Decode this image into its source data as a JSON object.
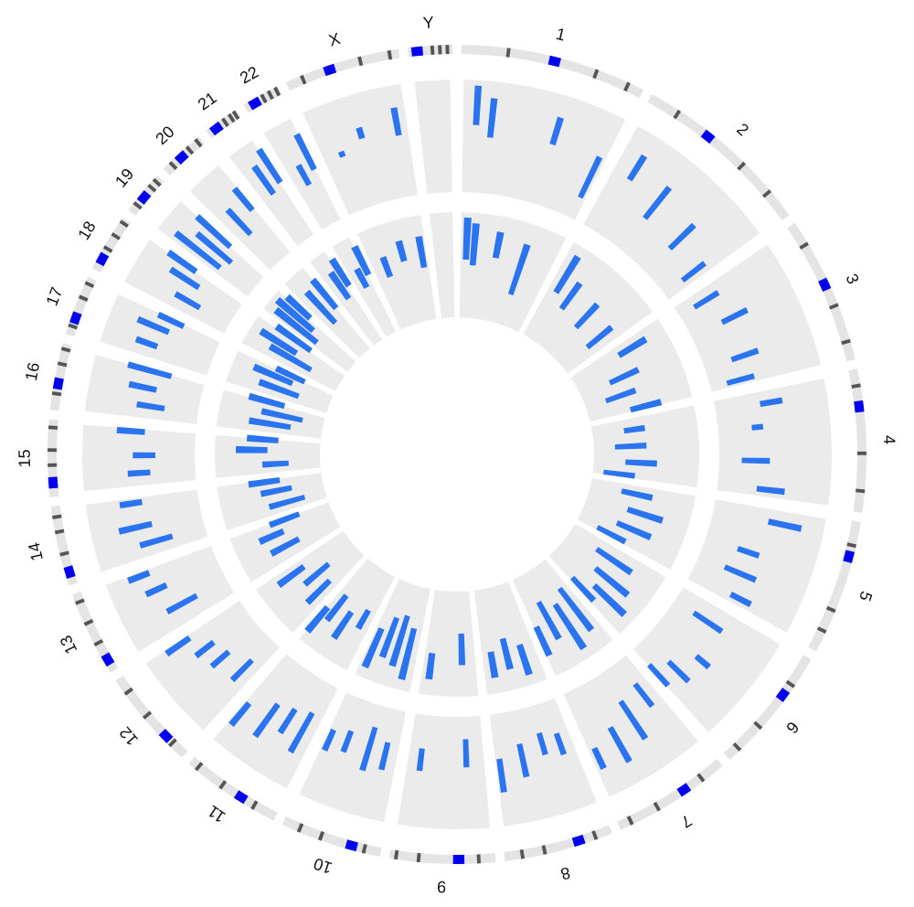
{
  "chart_data": {
    "type": "circos",
    "chromosomes": [
      "1",
      "2",
      "3",
      "4",
      "5",
      "6",
      "7",
      "8",
      "9",
      "10",
      "11",
      "12",
      "13",
      "14",
      "15",
      "16",
      "17",
      "18",
      "19",
      "20",
      "21",
      "22",
      "X",
      "Y"
    ],
    "lengths": [
      249,
      243,
      198,
      191,
      181,
      171,
      159,
      146,
      141,
      136,
      135,
      134,
      115,
      107,
      103,
      90,
      81,
      78,
      59,
      63,
      48,
      51,
      155,
      59
    ],
    "centromeres": [
      125,
      93,
      91,
      50,
      48,
      60,
      60,
      45,
      49,
      40,
      53,
      35,
      17,
      17,
      19,
      36,
      24,
      17,
      26,
      28,
      13,
      14,
      60,
      12
    ],
    "bands": [
      [
        60,
        180,
        225
      ],
      [
        40,
        150,
        200
      ],
      [
        30,
        120,
        170
      ],
      [
        20,
        110,
        160
      ],
      [
        30,
        120,
        150
      ],
      [
        40,
        110,
        150
      ],
      [
        30,
        100,
        140
      ],
      [
        20,
        90,
        120
      ],
      [
        20,
        100,
        130
      ],
      [
        20,
        80,
        110
      ],
      [
        30,
        80,
        120
      ],
      [
        20,
        70,
        110
      ],
      [
        40,
        70,
        100
      ],
      [
        40,
        70,
        90
      ],
      [
        40,
        60,
        90
      ],
      [
        20,
        60,
        80
      ],
      [
        10,
        50,
        70
      ],
      [
        30,
        50,
        70
      ],
      [
        10,
        40,
        50
      ],
      [
        10,
        40,
        55
      ],
      [
        25,
        35,
        42
      ],
      [
        25,
        35,
        45
      ],
      [
        20,
        100,
        140
      ],
      [
        30,
        40,
        50
      ]
    ],
    "color": "#2a74f0",
    "band_color": "#555555",
    "centromere_color": "#0000ee",
    "panel_color": "#ebebeb",
    "tracks": [
      {
        "bars": [
          [
            [
              20,
              0.6,
              0.95
            ],
            [
              45,
              0.5,
              0.85
            ],
            [
              150,
              0.55,
              0.8
            ],
            [
              230,
              0.2,
              0.6
            ]
          ],
          [
            [
              30,
              0.55,
              0.8
            ],
            [
              90,
              0.35,
              0.7
            ],
            [
              160,
              0.3,
              0.6
            ],
            [
              220,
              0.2,
              0.45
            ]
          ],
          [
            [
              20,
              0.15,
              0.4
            ],
            [
              70,
              0.3,
              0.55
            ],
            [
              140,
              0.25,
              0.5
            ],
            [
              180,
              0.15,
              0.4
            ]
          ],
          [
            [
              20,
              0.4,
              0.6
            ],
            [
              60,
              0.3,
              0.4
            ],
            [
              120,
              0.2,
              0.45
            ],
            [
              170,
              0.35,
              0.6
            ]
          ],
          [
            [
              20,
              0.5,
              0.8
            ],
            [
              80,
              0.3,
              0.5
            ],
            [
              120,
              0.25,
              0.55
            ],
            [
              160,
              0.4,
              0.6
            ]
          ],
          [
            [
              30,
              0.2,
              0.5
            ],
            [
              90,
              0.45,
              0.6
            ],
            [
              130,
              0.3,
              0.55
            ],
            [
              160,
              0.2,
              0.45
            ]
          ],
          [
            [
              20,
              0.25,
              0.5
            ],
            [
              60,
              0.3,
              0.7
            ],
            [
              100,
              0.45,
              0.8
            ],
            [
              140,
              0.55,
              0.75
            ]
          ],
          [
            [
              20,
              0.3,
              0.5
            ],
            [
              50,
              0.25,
              0.45
            ],
            [
              90,
              0.3,
              0.6
            ],
            [
              130,
              0.4,
              0.7
            ]
          ],
          [
            [
              30,
              0.2,
              0.45
            ],
            [
              110,
              0.3,
              0.5
            ]
          ],
          [
            [
              20,
              0.3,
              0.55
            ],
            [
              50,
              0.2,
              0.6
            ],
            [
              90,
              0.3,
              0.5
            ],
            [
              120,
              0.35,
              0.55
            ]
          ],
          [
            [
              20,
              0.3,
              0.7
            ],
            [
              50,
              0.35,
              0.6
            ],
            [
              80,
              0.4,
              0.75
            ],
            [
              120,
              0.55,
              0.8
            ]
          ],
          [
            [
              20,
              0.25,
              0.5
            ],
            [
              60,
              0.35,
              0.55
            ],
            [
              90,
              0.4,
              0.6
            ],
            [
              120,
              0.55,
              0.8
            ]
          ],
          [
            [
              30,
              0.3,
              0.6
            ],
            [
              70,
              0.5,
              0.7
            ],
            [
              100,
              0.6,
              0.8
            ]
          ],
          [
            [
              20,
              0.3,
              0.6
            ],
            [
              50,
              0.45,
              0.75
            ],
            [
              90,
              0.5,
              0.7
            ]
          ],
          [
            [
              20,
              0.4,
              0.6
            ],
            [
              50,
              0.35,
              0.55
            ],
            [
              90,
              0.45,
              0.7
            ]
          ],
          [
            [
              20,
              0.3,
              0.55
            ],
            [
              50,
              0.4,
              0.65
            ],
            [
              80,
              0.3,
              0.7
            ]
          ],
          [
            [
              20,
              0.5,
              0.7
            ],
            [
              50,
              0.45,
              0.75
            ],
            [
              70,
              0.35,
              0.6
            ]
          ],
          [
            [
              20,
              0.3,
              0.55
            ],
            [
              50,
              0.4,
              0.7
            ],
            [
              70,
              0.5,
              0.8
            ]
          ],
          [
            [
              10,
              0.35,
              0.85
            ],
            [
              30,
              0.3,
              0.7
            ],
            [
              50,
              0.4,
              0.8
            ]
          ],
          [
            [
              20,
              0.35,
              0.65
            ],
            [
              50,
              0.5,
              0.75
            ]
          ],
          [
            [
              20,
              0.5,
              0.8
            ],
            [
              40,
              0.55,
              0.9
            ]
          ],
          [
            [
              20,
              0.4,
              0.6
            ],
            [
              40,
              0.5,
              0.85
            ]
          ],
          [
            [
              30,
              0.5,
              0.55
            ],
            [
              70,
              0.6,
              0.7
            ],
            [
              130,
              0.55,
              0.8
            ]
          ],
          []
        ]
      },
      {
        "bars": [
          [
            [
              10,
              0.55,
              0.95
            ],
            [
              30,
              0.5,
              0.9
            ],
            [
              90,
              0.6,
              0.85
            ],
            [
              160,
              0.3,
              0.8
            ]
          ],
          [
            [
              20,
              0.5,
              0.9
            ],
            [
              60,
              0.4,
              0.7
            ],
            [
              130,
              0.35,
              0.65
            ],
            [
              200,
              0.3,
              0.6
            ]
          ],
          [
            [
              20,
              0.5,
              0.8
            ],
            [
              80,
              0.3,
              0.6
            ],
            [
              130,
              0.2,
              0.5
            ],
            [
              180,
              0.4,
              0.7
            ]
          ],
          [
            [
              30,
              0.3,
              0.5
            ],
            [
              80,
              0.2,
              0.5
            ],
            [
              130,
              0.3,
              0.6
            ],
            [
              170,
              0.1,
              0.4
            ]
          ],
          [
            [
              20,
              0.3,
              0.6
            ],
            [
              70,
              0.4,
              0.75
            ],
            [
              120,
              0.35,
              0.7
            ],
            [
              160,
              0.2,
              0.5
            ]
          ],
          [
            [
              30,
              0.3,
              0.7
            ],
            [
              80,
              0.4,
              0.8
            ],
            [
              120,
              0.5,
              0.9
            ],
            [
              150,
              0.3,
              0.6
            ]
          ],
          [
            [
              20,
              0.3,
              0.8
            ],
            [
              60,
              0.4,
              0.9
            ],
            [
              100,
              0.3,
              0.7
            ],
            [
              140,
              0.5,
              0.8
            ]
          ],
          [
            [
              30,
              0.6,
              0.9
            ],
            [
              70,
              0.5,
              0.8
            ],
            [
              110,
              0.6,
              0.85
            ]
          ],
          [
            [
              30,
              0.4,
              0.7
            ],
            [
              110,
              0.6,
              0.85
            ]
          ],
          [
            [
              20,
              0.4,
              0.9
            ],
            [
              50,
              0.3,
              0.8
            ],
            [
              80,
              0.35,
              0.75
            ],
            [
              110,
              0.5,
              0.9
            ]
          ],
          [
            [
              20,
              0.4,
              0.6
            ],
            [
              60,
              0.5,
              0.8
            ],
            [
              100,
              0.4,
              0.7
            ],
            [
              120,
              0.6,
              0.9
            ]
          ],
          [
            [
              20,
              0.4,
              0.7
            ],
            [
              60,
              0.3,
              0.6
            ],
            [
              100,
              0.5,
              0.8
            ]
          ],
          [
            [
              30,
              0.4,
              0.7
            ],
            [
              70,
              0.5,
              0.75
            ],
            [
              100,
              0.3,
              0.6
            ]
          ],
          [
            [
              20,
              0.2,
              0.55
            ],
            [
              60,
              0.3,
              0.6
            ],
            [
              90,
              0.4,
              0.7
            ]
          ],
          [
            [
              20,
              0.3,
              0.55
            ],
            [
              60,
              0.5,
              0.8
            ],
            [
              90,
              0.4,
              0.7
            ]
          ],
          [
            [
              20,
              0.3,
              0.7
            ],
            [
              50,
              0.2,
              0.6
            ],
            [
              80,
              0.4,
              0.75
            ]
          ],
          [
            [
              20,
              0.3,
              0.7
            ],
            [
              50,
              0.4,
              0.8
            ],
            [
              70,
              0.3,
              0.6
            ]
          ],
          [
            [
              20,
              0.3,
              0.75
            ],
            [
              40,
              0.5,
              0.9
            ],
            [
              70,
              0.4,
              0.8
            ]
          ],
          [
            [
              10,
              0.4,
              0.9
            ],
            [
              30,
              0.5,
              0.95
            ],
            [
              50,
              0.6,
              0.9
            ]
          ],
          [
            [
              20,
              0.4,
              0.8
            ],
            [
              50,
              0.5,
              0.85
            ]
          ],
          [
            [
              20,
              0.5,
              0.8
            ],
            [
              40,
              0.6,
              0.9
            ]
          ],
          [
            [
              20,
              0.5,
              0.7
            ],
            [
              40,
              0.6,
              0.9
            ]
          ],
          [
            [
              30,
              0.5,
              0.7
            ],
            [
              80,
              0.6,
              0.8
            ],
            [
              130,
              0.5,
              0.8
            ]
          ],
          []
        ]
      }
    ]
  }
}
